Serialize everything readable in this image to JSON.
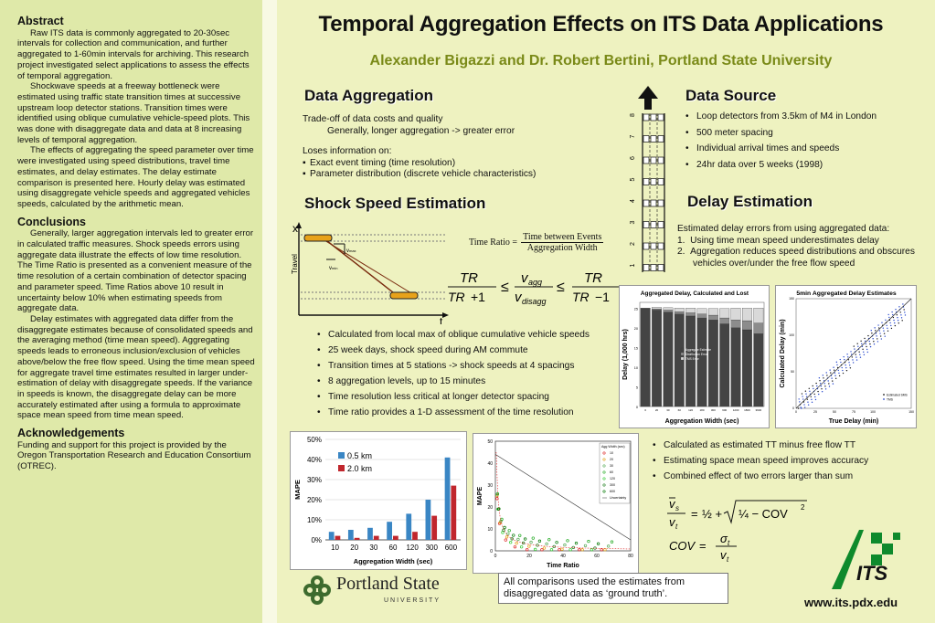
{
  "left": {
    "abstract_heading": "Abstract",
    "abstract_paragraphs": [
      "Raw ITS data is commonly aggregated to 20-30sec intervals for collection and communication, and further aggregated to 1-60min intervals for archiving. This research project investigated select applications to assess the effects of temporal aggregation.",
      "Shockwave speeds at a freeway bottleneck were estimated using traffic state transition times at successive upstream loop detector stations. Transition times were identified using oblique cumulative vehicle-speed plots. This was done with disaggregate data and data at 8 increasing levels of temporal aggregation.",
      "The effects of aggregating the speed parameter over time were investigated using speed distributions, travel time estimates, and delay estimates. The delay estimate comparison is presented here. Hourly delay was estimated using disaggregate vehicle speeds and aggregated vehicles speeds, calculated by the arithmetic mean."
    ],
    "conclusions_heading": "Conclusions",
    "conclusions_paragraphs": [
      "Generally, larger aggregation intervals led to greater error in calculated traffic measures. Shock speeds errors using aggregate data illustrate the effects of low time resolution. The Time Ratio is presented as a convenient measure of the time resolution of a certain combination of detector spacing and parameter speed. Time Ratios above 10 result in uncertainty below 10% when estimating speeds from aggregate data.",
      "Delay estimates with aggregated data differ from the disaggregate estimates because of consolidated speeds and the averaging method (time mean speed). Aggregating speeds leads to erroneous inclusion/exclusion of vehicles above/below the free flow speed. Using the time mean speed for aggregate travel time estimates resulted in larger under-estimation of delay with disaggregate speeds. If the variance in speeds is known, the disaggregate delay can be more accurately estimated after using a formula to approximate space mean speed from time mean speed."
    ],
    "ack_heading": "Acknowledgements",
    "ack_text": "Funding and support for this project is provided by the Oregon Transportation Research and Education Consortium (OTREC)."
  },
  "title": "Temporal Aggregation Effects on ITS Data Applications",
  "authors": "Alexander Bigazzi and Dr. Robert Bertini, Portland State University",
  "data_aggregation": {
    "heading": "Data Aggregation",
    "line1": "Trade-off of data costs and quality",
    "line2": "Generally, longer aggregation -> greater error",
    "loses": "Loses information on:",
    "items": [
      "Exact event timing (time resolution)",
      "Parameter distribution (discrete vehicle characteristics)"
    ]
  },
  "data_source": {
    "heading": "Data Source",
    "items": [
      "Loop detectors from 3.5km of M4 in London",
      "500 meter spacing",
      "Individual arrival times and speeds",
      "24hr data over 5 weeks (1998)"
    ],
    "station_labels": [
      "8",
      "7",
      "6",
      "5",
      "4",
      "3",
      "2",
      "1"
    ]
  },
  "shock": {
    "heading": "Shock Speed Estimation",
    "x_label": "x",
    "t_label": "t",
    "travel_label": "Travel",
    "vmax": "v",
    "vmax_sub": "max",
    "vmin": "v",
    "vmin_sub": "min",
    "ratio_label": "Time Ratio =",
    "ratio_num": "Time between Events",
    "ratio_den": "Aggregation Width",
    "items": [
      "Calculated from local max of oblique cumulative vehicle speeds",
      "25 week days, shock speed during AM commute",
      "Transition times at 5 stations -> shock speeds at 4 spacings",
      "8 aggregation levels, up to 15 minutes",
      "Time resolution less critical at longer detector spacing",
      "Time ratio provides a 1-D assessment of the time resolution"
    ]
  },
  "delay": {
    "heading": "Delay Estimation",
    "intro": "Estimated delay errors from using aggregated data:",
    "items": [
      "1.  Using time mean speed underestimates delay",
      "2.  Aggregation reduces speed distributions and obscures vehicles over/under the free flow speed"
    ],
    "bullets": [
      "Calculated as estimated TT minus free flow TT",
      "Estimating space mean speed improves accuracy",
      "Combined effect of two errors larger than sum"
    ]
  },
  "note": "All comparisons used the estimates from disaggregated data as ‘ground truth’.",
  "logos": {
    "psu_name": "Portland State",
    "psu_sub": "UNIVERSITY",
    "its": "ITS"
  },
  "url": "www.its.pdx.edu",
  "chart_data": [
    {
      "type": "bar",
      "categories": [
        "10",
        "20",
        "30",
        "60",
        "120",
        "300",
        "600"
      ],
      "series": [
        {
          "name": "0.5 km",
          "values": [
            4,
            5,
            6,
            9,
            13,
            20,
            41
          ]
        },
        {
          "name": "2.0 km",
          "values": [
            2,
            1,
            2,
            2,
            4,
            12,
            27
          ]
        }
      ],
      "xlabel": "Aggregation Width (sec)",
      "ylabel": "MAPE",
      "ylim": [
        0,
        50
      ],
      "yticks": [
        "0%",
        "10%",
        "20%",
        "30%",
        "40%",
        "50%"
      ],
      "colors": [
        "#3a86c4",
        "#c0262d"
      ],
      "legend": "top-left",
      "grid": true
    },
    {
      "type": "scatter",
      "xlabel": "Time Ratio",
      "ylabel": "MAPE",
      "xlim": [
        0,
        80
      ],
      "ylim": [
        0,
        50
      ],
      "xticks": [
        "0",
        "20",
        "40",
        "60",
        "80"
      ],
      "yticks": [
        "0",
        "10",
        "20",
        "30",
        "40",
        "50"
      ],
      "legend_title": "Agg Width (sec)",
      "legend_entries": [
        "10",
        "20",
        "30",
        "60",
        "120",
        "300",
        "600",
        "Uncertainty"
      ],
      "uncertainty_line": [
        [
          0,
          44
        ],
        [
          80,
          5
        ]
      ]
    },
    {
      "type": "bar",
      "title": "Aggregated Delay, Calculated and Lost",
      "xlabel": "Aggregation Width (sec)",
      "ylabel": "Delay (1,000 hrs)",
      "categories": [
        "0",
        "20",
        "30",
        "60",
        "120",
        "180",
        "300",
        "600",
        "1200",
        "1800",
        "3600"
      ],
      "series": [
        {
          "name": "Aggregate Estimate",
          "values": [
            25,
            24.5,
            24,
            23.5,
            23,
            22.5,
            22,
            21,
            20,
            19.5,
            18.5
          ]
        },
        {
          "name": "Distribution Error",
          "values": [
            0,
            0.3,
            0.5,
            0.6,
            0.8,
            1.0,
            1.2,
            1.5,
            2.0,
            2.3,
            2.7
          ]
        },
        {
          "name": "TMS Error",
          "values": [
            0,
            0.4,
            0.6,
            0.9,
            1.2,
            1.4,
            1.7,
            2.4,
            3.0,
            3.2,
            3.8
          ]
        }
      ],
      "ylim": [
        0,
        25
      ],
      "yticks": [
        "0",
        "5",
        "10",
        "15",
        "20",
        "25"
      ],
      "colors": [
        "#444444",
        "#8c8c8c",
        "#d9d9d9"
      ]
    },
    {
      "type": "scatter",
      "title": "5min Aggregated Delay Estimates",
      "xlabel": "True Delay (min)",
      "ylabel": "Calculated Delay (min)",
      "xlim": [
        0,
        150
      ],
      "ylim": [
        0,
        150
      ],
      "xticks": [
        "0",
        "25",
        "50",
        "75",
        "100",
        "150"
      ],
      "yticks": [
        "0",
        "50",
        "100",
        "150"
      ],
      "legend_entries": [
        "Estimated SMS",
        "TMS"
      ]
    }
  ]
}
